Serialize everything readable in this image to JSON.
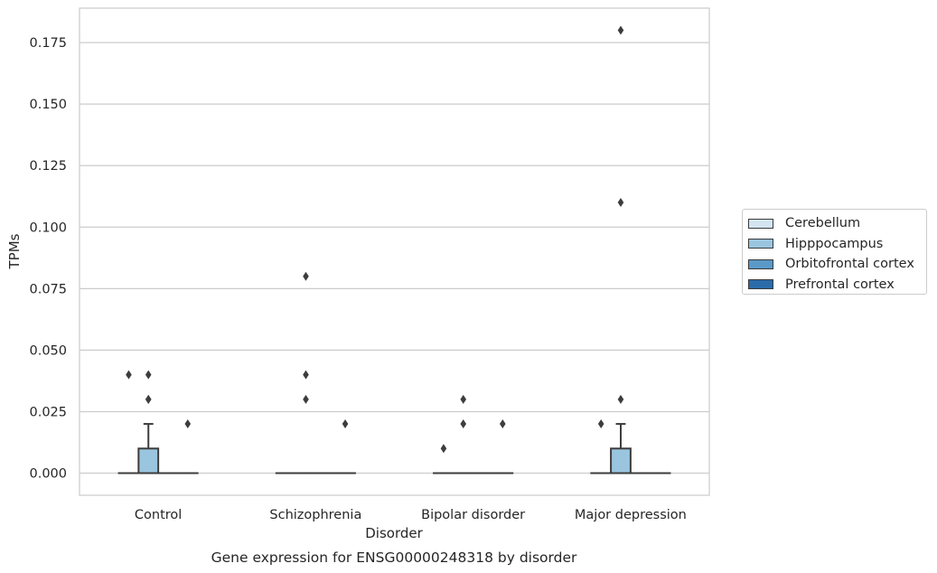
{
  "chart_data": {
    "type": "box",
    "title": "Gene expression for ENSG00000248318 by disorder",
    "xlabel": "Disorder",
    "ylabel": "TPMs",
    "categories": [
      "Control",
      "Schizophrenia",
      "Bipolar disorder",
      "Major depression"
    ],
    "ylim": [
      -0.009,
      0.189
    ],
    "yticks": [
      "0.000",
      "0.025",
      "0.050",
      "0.075",
      "0.100",
      "0.125",
      "0.150",
      "0.175"
    ],
    "grid": true,
    "legend_position": "right",
    "series": [
      {
        "name": "Cerebellum",
        "color": "#d3e5f1",
        "boxes": [
          {
            "q1": 0,
            "median": 0,
            "q3": 0,
            "whislo": 0,
            "whishi": 0,
            "fliers": [
              0.04
            ]
          },
          {
            "q1": 0,
            "median": 0,
            "q3": 0,
            "whislo": 0,
            "whishi": 0,
            "fliers": []
          },
          {
            "q1": 0,
            "median": 0,
            "q3": 0,
            "whislo": 0,
            "whishi": 0,
            "fliers": [
              0.01
            ]
          },
          {
            "q1": 0,
            "median": 0,
            "q3": 0,
            "whislo": 0,
            "whishi": 0,
            "fliers": [
              0.02
            ]
          }
        ]
      },
      {
        "name": "Hipppocampus",
        "color": "#9ac5de",
        "boxes": [
          {
            "q1": 0,
            "median": 0,
            "q3": 0.01,
            "whislo": 0,
            "whishi": 0.02,
            "fliers": [
              0.04,
              0.03,
              0.03
            ]
          },
          {
            "q1": 0,
            "median": 0,
            "q3": 0,
            "whislo": 0,
            "whishi": 0,
            "fliers": [
              0.08,
              0.04,
              0.03
            ]
          },
          {
            "q1": 0,
            "median": 0,
            "q3": 0,
            "whislo": 0,
            "whishi": 0,
            "fliers": [
              0.03,
              0.02
            ]
          },
          {
            "q1": 0,
            "median": 0,
            "q3": 0.01,
            "whislo": 0,
            "whishi": 0.02,
            "fliers": [
              0.18,
              0.11,
              0.03
            ]
          }
        ]
      },
      {
        "name": "Orbitofrontal cortex",
        "color": "#5a99c8",
        "boxes": [
          {
            "q1": 0,
            "median": 0,
            "q3": 0,
            "whislo": 0,
            "whishi": 0,
            "fliers": []
          },
          {
            "q1": 0,
            "median": 0,
            "q3": 0,
            "whislo": 0,
            "whishi": 0,
            "fliers": []
          },
          {
            "q1": 0,
            "median": 0,
            "q3": 0,
            "whislo": 0,
            "whishi": 0,
            "fliers": []
          },
          {
            "q1": 0,
            "median": 0,
            "q3": 0,
            "whislo": 0,
            "whishi": 0,
            "fliers": []
          }
        ]
      },
      {
        "name": "Prefrontal cortex",
        "color": "#2a6ba9",
        "boxes": [
          {
            "q1": 0,
            "median": 0,
            "q3": 0,
            "whislo": 0,
            "whishi": 0,
            "fliers": [
              0.02
            ]
          },
          {
            "q1": 0,
            "median": 0,
            "q3": 0,
            "whislo": 0,
            "whishi": 0,
            "fliers": [
              0.02
            ]
          },
          {
            "q1": 0,
            "median": 0,
            "q3": 0,
            "whislo": 0,
            "whishi": 0,
            "fliers": [
              0.02
            ]
          },
          {
            "q1": 0,
            "median": 0,
            "q3": 0,
            "whislo": 0,
            "whishi": 0,
            "fliers": []
          }
        ]
      }
    ]
  }
}
